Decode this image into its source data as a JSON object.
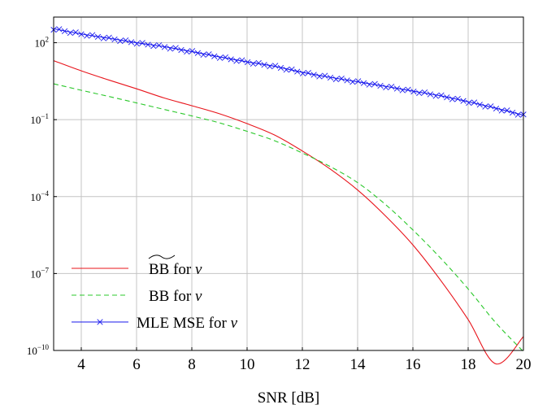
{
  "chart_data": {
    "type": "line",
    "xlabel": "SNR [dB]",
    "ylabel": "",
    "xlim": [
      3,
      20
    ],
    "ylim_log10": [
      -10,
      3
    ],
    "yscale": "log",
    "grid": true,
    "legend_position": "bottom-left",
    "x_ticks": [
      "4",
      "6",
      "8",
      "10",
      "12",
      "14",
      "16",
      "18",
      "20"
    ],
    "y_ticks": [
      {
        "base": "10",
        "exp": "2"
      },
      {
        "base": "10",
        "exp": "−1"
      },
      {
        "base": "10",
        "exp": "−4"
      },
      {
        "base": "10",
        "exp": "−7"
      },
      {
        "base": "10",
        "exp": "−10"
      }
    ],
    "series": [
      {
        "name": "BB for ν",
        "legend_main": "BB for ",
        "legend_var": "ν",
        "legend_tilde": true,
        "color": "#e8141b",
        "style": "solid",
        "marker": "none",
        "x": [
          3,
          4,
          5,
          6,
          7,
          8,
          9,
          10,
          11,
          12,
          13,
          14,
          15,
          16,
          17,
          18,
          19,
          20
        ],
        "y": [
          20,
          8,
          3.5,
          1.6,
          0.7,
          0.35,
          0.17,
          0.07,
          0.025,
          0.006,
          0.0012,
          0.00018,
          1.8e-05,
          1.3e-06,
          5.5e-08,
          1.6e-09,
          3e-11,
          3.5e-10
        ]
      },
      {
        "name": "BB for ν",
        "legend_main": "BB for ",
        "legend_var": "ν",
        "legend_tilde": false,
        "color": "#2bc82b",
        "style": "dashed",
        "marker": "none",
        "x": [
          3,
          4,
          5,
          6,
          7,
          8,
          9,
          10,
          11,
          12,
          13,
          14,
          15,
          16,
          17,
          18,
          19,
          20
        ],
        "y": [
          2.5,
          1.4,
          0.8,
          0.45,
          0.25,
          0.14,
          0.075,
          0.035,
          0.015,
          0.005,
          0.0015,
          0.00035,
          5e-05,
          5e-06,
          4e-07,
          2.5e-08,
          1.2e-09,
          9e-11
        ]
      },
      {
        "name": "MLE MSE for ν",
        "legend_main": "MLE MSE for ",
        "legend_var": "ν",
        "legend_tilde": false,
        "color": "#1a1aee",
        "style": "solid",
        "marker": "x",
        "x": [
          3,
          4,
          5,
          6,
          7,
          8,
          9,
          10,
          11,
          12,
          13,
          14,
          15,
          16,
          17,
          18,
          19,
          20
        ],
        "y": [
          350,
          220,
          150,
          100,
          70,
          45,
          28,
          18,
          12,
          7,
          4.5,
          3.0,
          2.0,
          1.3,
          0.85,
          0.5,
          0.28,
          0.15
        ]
      }
    ]
  }
}
